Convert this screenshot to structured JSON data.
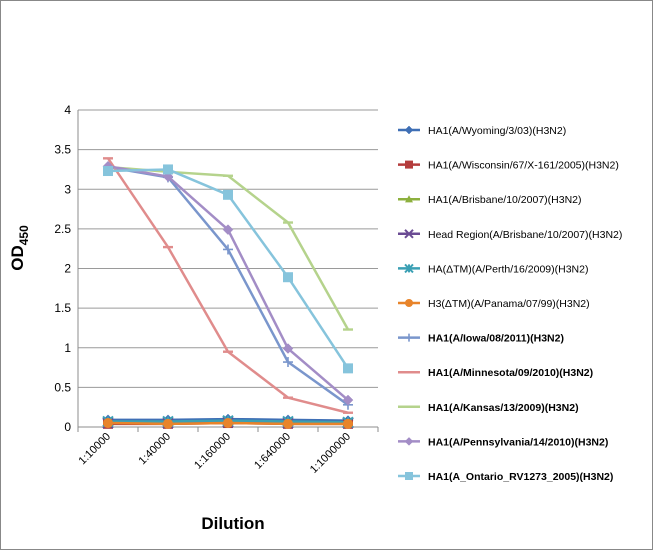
{
  "chart_data": {
    "type": "line",
    "title": "",
    "xlabel": "Dilution",
    "ylabel": "OD",
    "ylabel_sub": "450",
    "categories": [
      "1:10000",
      "1:40000",
      "1:160000",
      "1:640000",
      "1:1000000"
    ],
    "ylim": [
      0,
      4
    ],
    "yticks": [
      "0",
      "0.5",
      "1",
      "1.5",
      "2",
      "2.5",
      "3",
      "3.5",
      "4"
    ],
    "grid": true,
    "legend_position": "right",
    "series": [
      {
        "name": "HA1(A/Wyoming/3/03)(H3N2)",
        "color": "#3F6FB5",
        "marker": "diamond",
        "bold": false,
        "values": [
          0.09,
          0.09,
          0.1,
          0.09,
          0.08
        ]
      },
      {
        "name": "HA1(A/Wisconsin/67/X-161/2005)(H3N2)",
        "color": "#B43C3C",
        "marker": "square",
        "bold": false,
        "values": [
          0.04,
          0.04,
          0.05,
          0.04,
          0.04
        ]
      },
      {
        "name": "HA1(A/Brisbane/10/2007)(H3N2)",
        "color": "#8DB03E",
        "marker": "triangle",
        "bold": false,
        "values": [
          0.06,
          0.06,
          0.07,
          0.06,
          0.05
        ]
      },
      {
        "name": "Head Region(A/Brisbane/10/2007)(H3N2)",
        "color": "#6A4B93",
        "marker": "x",
        "bold": false,
        "values": [
          0.05,
          0.05,
          0.06,
          0.05,
          0.05
        ]
      },
      {
        "name": "HA(ΔTM)(A/Perth/16/2009)(H3N2)",
        "color": "#3BA0B4",
        "marker": "star",
        "bold": false,
        "values": [
          0.07,
          0.07,
          0.08,
          0.07,
          0.06
        ]
      },
      {
        "name": "H3(ΔTM)(A/Panama/07/99)(H3N2)",
        "color": "#E8842A",
        "marker": "circle",
        "bold": false,
        "values": [
          0.05,
          0.04,
          0.05,
          0.04,
          0.04
        ]
      },
      {
        "name": "HA1(A/Iowa/08/2011)(H3N2)",
        "color": "#7A96CC",
        "marker": "plus",
        "bold": true,
        "values": [
          3.28,
          3.15,
          2.24,
          0.82,
          0.28
        ]
      },
      {
        "name": "HA1(A/Minnesota/09/2010)(H3N2)",
        "color": "#E08C8C",
        "marker": "dash",
        "bold": true,
        "values": [
          3.39,
          2.27,
          0.95,
          0.37,
          0.18
        ]
      },
      {
        "name": "HA1(A/Kansas/13/2009)(H3N2)",
        "color": "#B5D38C",
        "marker": "dash",
        "bold": true,
        "values": [
          3.28,
          3.22,
          3.17,
          2.58,
          1.23
        ]
      },
      {
        "name": "HA1(A/Pennsylvania/14/2010)(H3N2)",
        "color": "#A38DC6",
        "marker": "diamond",
        "bold": true,
        "values": [
          3.29,
          3.16,
          2.49,
          0.99,
          0.34
        ]
      },
      {
        "name": "HA1(A_Ontario_RV1273_2005)(H3N2)",
        "color": "#86C4DC",
        "marker": "square",
        "bold": true,
        "values": [
          3.23,
          3.25,
          2.93,
          1.89,
          0.74
        ]
      }
    ]
  }
}
